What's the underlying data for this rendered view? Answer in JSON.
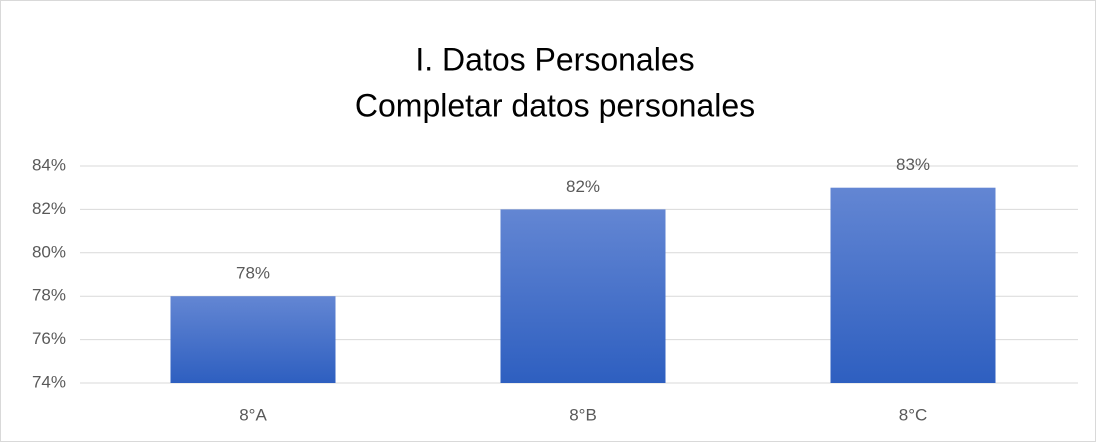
{
  "chart_data": {
    "type": "bar",
    "title": [
      "I. Datos Personales",
      "Completar datos personales"
    ],
    "categories": [
      "8°A",
      "8°B",
      "8°C"
    ],
    "values": [
      78,
      82,
      83
    ],
    "value_labels": [
      "78%",
      "82%",
      "83%"
    ],
    "color": "#4472c4",
    "ylim": [
      74,
      84
    ],
    "yticks": [
      {
        "value": 74,
        "label": "74%"
      },
      {
        "value": 76,
        "label": "76%"
      },
      {
        "value": 78,
        "label": "78%"
      },
      {
        "value": 80,
        "label": "80%"
      },
      {
        "value": 82,
        "label": "82%"
      },
      {
        "value": 84,
        "label": "84%"
      }
    ],
    "grid": true
  }
}
